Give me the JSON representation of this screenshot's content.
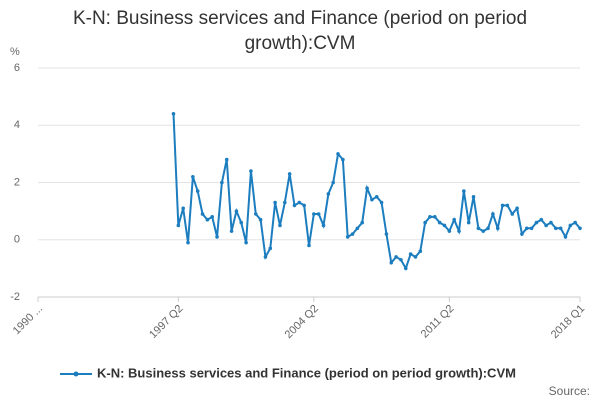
{
  "chart_data": {
    "type": "line",
    "title": "K-N: Business services and Finance (period on period growth):CVM",
    "y_label": "%",
    "source": "Source:",
    "categories": [
      "1990 ...",
      null,
      null,
      null,
      null,
      null,
      null,
      null,
      null,
      null,
      null,
      null,
      null,
      null,
      null,
      null,
      null,
      null,
      null,
      null,
      null,
      null,
      null,
      null,
      null,
      null,
      null,
      null,
      null,
      "1997 Q2",
      null,
      null,
      null,
      null,
      null,
      null,
      null,
      null,
      null,
      null,
      null,
      null,
      null,
      null,
      null,
      null,
      null,
      null,
      null,
      null,
      null,
      null,
      null,
      null,
      null,
      null,
      null,
      "2004 Q2",
      null,
      null,
      null,
      null,
      null,
      null,
      null,
      null,
      null,
      null,
      null,
      null,
      null,
      null,
      null,
      null,
      null,
      null,
      null,
      null,
      null,
      null,
      null,
      null,
      null,
      null,
      null,
      "2011 Q2",
      null,
      null,
      null,
      null,
      null,
      null,
      null,
      null,
      null,
      null,
      null,
      null,
      null,
      null,
      null,
      null,
      null,
      null,
      null,
      null,
      null,
      null,
      null,
      null,
      null,
      null,
      "2018 Q1"
    ],
    "series": [
      {
        "name": "K-N: Business services and Finance (period on period growth):CVM",
        "color": "#1c7dbf",
        "values": [
          null,
          null,
          null,
          null,
          null,
          null,
          null,
          null,
          null,
          null,
          null,
          null,
          null,
          null,
          null,
          null,
          null,
          null,
          null,
          null,
          null,
          null,
          null,
          null,
          null,
          null,
          null,
          null,
          4.4,
          0.5,
          1.1,
          -0.1,
          2.2,
          1.7,
          0.9,
          0.7,
          0.8,
          0.1,
          2.0,
          2.8,
          0.3,
          1.0,
          0.6,
          -0.1,
          2.4,
          0.9,
          0.7,
          -0.6,
          -0.3,
          1.3,
          0.5,
          1.3,
          2.3,
          1.2,
          1.3,
          1.2,
          -0.2,
          0.9,
          0.9,
          0.5,
          1.6,
          2.0,
          3.0,
          2.8,
          0.1,
          0.2,
          0.4,
          0.6,
          1.8,
          1.4,
          1.5,
          1.3,
          0.2,
          -0.8,
          -0.6,
          -0.7,
          -1.0,
          -0.5,
          -0.6,
          -0.4,
          0.6,
          0.8,
          0.8,
          0.6,
          0.5,
          0.3,
          0.7,
          0.3,
          1.7,
          0.6,
          1.5,
          0.4,
          0.3,
          0.4,
          0.9,
          0.4,
          1.2,
          1.2,
          0.9,
          1.1,
          0.2,
          0.4,
          0.4,
          0.6,
          0.7,
          0.5,
          0.6,
          0.4,
          0.4,
          0.1,
          0.5,
          0.6,
          0.4
        ]
      }
    ],
    "ylim": [
      -2,
      6
    ],
    "yticks": [
      -2,
      0,
      2,
      4,
      6
    ],
    "grid": true
  }
}
